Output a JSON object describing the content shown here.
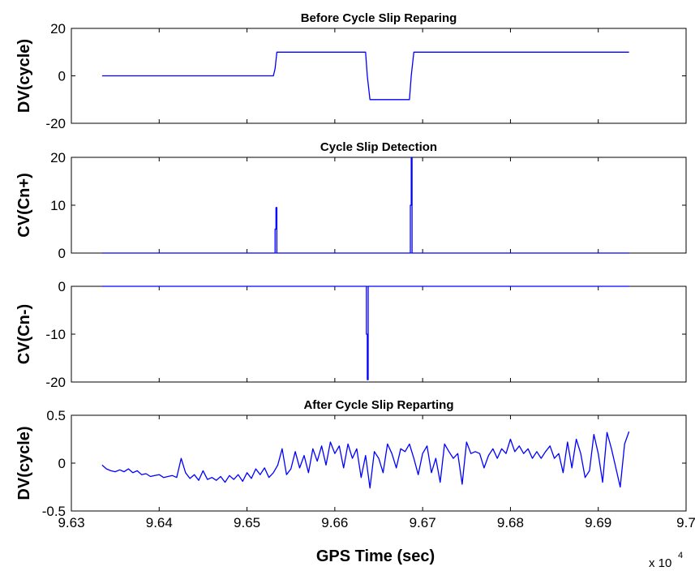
{
  "chart_data": [
    {
      "type": "line",
      "title": "Before Cycle Slip Reparing",
      "ylabel": "DV(cycle)",
      "xlabel": "",
      "xlim": [
        96300,
        97000
      ],
      "ylim": [
        -20,
        20
      ],
      "yticks": [
        "-20",
        "0",
        "20"
      ],
      "x": [
        96335,
        96530,
        96532,
        96534,
        96635,
        96637,
        96640,
        96685,
        96687,
        96690,
        96935
      ],
      "values": [
        0,
        0,
        3,
        10,
        10,
        0,
        -10,
        -10,
        0,
        10,
        10
      ]
    },
    {
      "type": "line",
      "title": "Cycle Slip Detection",
      "ylabel": "CV(Cn+)",
      "xlabel": "",
      "xlim": [
        96300,
        97000
      ],
      "ylim": [
        0,
        20
      ],
      "yticks": [
        "0",
        "10",
        "20"
      ],
      "x": [
        96335,
        96532,
        96532,
        96533,
        96533,
        96534,
        96534,
        96686,
        96686,
        96687,
        96687,
        96688,
        96688,
        96935
      ],
      "values": [
        0,
        0,
        5,
        5,
        9.5,
        9.5,
        0,
        0,
        10,
        10,
        20,
        20,
        0,
        0
      ]
    },
    {
      "type": "line",
      "title": "",
      "ylabel": "CV(Cn-)",
      "xlabel": "",
      "xlim": [
        96300,
        97000
      ],
      "ylim": [
        -20,
        0
      ],
      "yticks": [
        "-20",
        "-10",
        "0"
      ],
      "x": [
        96335,
        96636,
        96636,
        96637,
        96637,
        96638,
        96638,
        96935
      ],
      "values": [
        0,
        0,
        -10,
        -10,
        -19.5,
        -19.5,
        0,
        0
      ]
    },
    {
      "type": "line",
      "title": "After Cycle Slip Reparting",
      "ylabel": "DV(cycle)",
      "xlabel": "GPS Time (sec)",
      "xlim": [
        96300,
        97000
      ],
      "ylim": [
        -0.5,
        0.5
      ],
      "yticks": [
        "-0.5",
        "0",
        "0.5"
      ],
      "xticks": [
        "9.63",
        "9.64",
        "9.65",
        "9.66",
        "9.67",
        "9.68",
        "9.69",
        "9.7"
      ],
      "x_multiplier": "x 10",
      "x_multiplier_exp": "4",
      "x": [
        96335,
        96340,
        96345,
        96350,
        96355,
        96360,
        96365,
        96370,
        96375,
        96380,
        96385,
        96390,
        96395,
        96400,
        96405,
        96410,
        96415,
        96420,
        96425,
        96430,
        96435,
        96440,
        96445,
        96450,
        96455,
        96460,
        96465,
        96470,
        96475,
        96480,
        96485,
        96490,
        96495,
        96500,
        96505,
        96510,
        96515,
        96520,
        96525,
        96530,
        96535,
        96540,
        96545,
        96550,
        96555,
        96560,
        96565,
        96570,
        96575,
        96580,
        96585,
        96590,
        96595,
        96600,
        96605,
        96610,
        96615,
        96620,
        96625,
        96630,
        96635,
        96640,
        96645,
        96650,
        96655,
        96660,
        96665,
        96670,
        96675,
        96680,
        96685,
        96690,
        96695,
        96700,
        96705,
        96710,
        96715,
        96720,
        96725,
        96730,
        96735,
        96740,
        96745,
        96750,
        96755,
        96760,
        96765,
        96770,
        96775,
        96780,
        96785,
        96790,
        96795,
        96800,
        96805,
        96810,
        96815,
        96820,
        96825,
        96830,
        96835,
        96840,
        96845,
        96850,
        96855,
        96860,
        96865,
        96870,
        96875,
        96880,
        96885,
        96890,
        96895,
        96900,
        96905,
        96910,
        96915,
        96920,
        96925,
        96930,
        96935
      ],
      "values": [
        -0.02,
        -0.06,
        -0.08,
        -0.09,
        -0.07,
        -0.09,
        -0.06,
        -0.1,
        -0.08,
        -0.12,
        -0.11,
        -0.14,
        -0.13,
        -0.12,
        -0.15,
        -0.14,
        -0.13,
        -0.15,
        0.05,
        -0.1,
        -0.16,
        -0.12,
        -0.18,
        -0.08,
        -0.17,
        -0.15,
        -0.18,
        -0.14,
        -0.2,
        -0.13,
        -0.17,
        -0.12,
        -0.19,
        -0.1,
        -0.16,
        -0.06,
        -0.12,
        -0.05,
        -0.15,
        -0.1,
        -0.02,
        0.15,
        -0.12,
        -0.06,
        0.12,
        -0.05,
        0.08,
        -0.1,
        0.15,
        0.02,
        0.18,
        -0.02,
        0.22,
        0.1,
        0.18,
        -0.05,
        0.2,
        0.05,
        0.15,
        -0.15,
        0.08,
        -0.26,
        0.12,
        0.05,
        -0.1,
        0.2,
        0.1,
        -0.05,
        0.15,
        0.12,
        0.2,
        0.05,
        -0.12,
        0.1,
        0.18,
        -0.1,
        0.05,
        -0.2,
        0.2,
        0.12,
        0.05,
        0.1,
        -0.22,
        0.22,
        0.1,
        0.12,
        0.1,
        -0.05,
        0.08,
        0.15,
        0.05,
        0.15,
        0.1,
        0.25,
        0.12,
        0.18,
        0.1,
        0.15,
        0.05,
        0.12,
        0.05,
        0.12,
        0.18,
        0.05,
        0.1,
        -0.1,
        0.22,
        -0.05,
        0.25,
        0.1,
        -0.15,
        -0.08,
        0.3,
        0.1,
        -0.2,
        0.32,
        0.15,
        -0.05,
        -0.25,
        0.2,
        0.33
      ]
    }
  ]
}
